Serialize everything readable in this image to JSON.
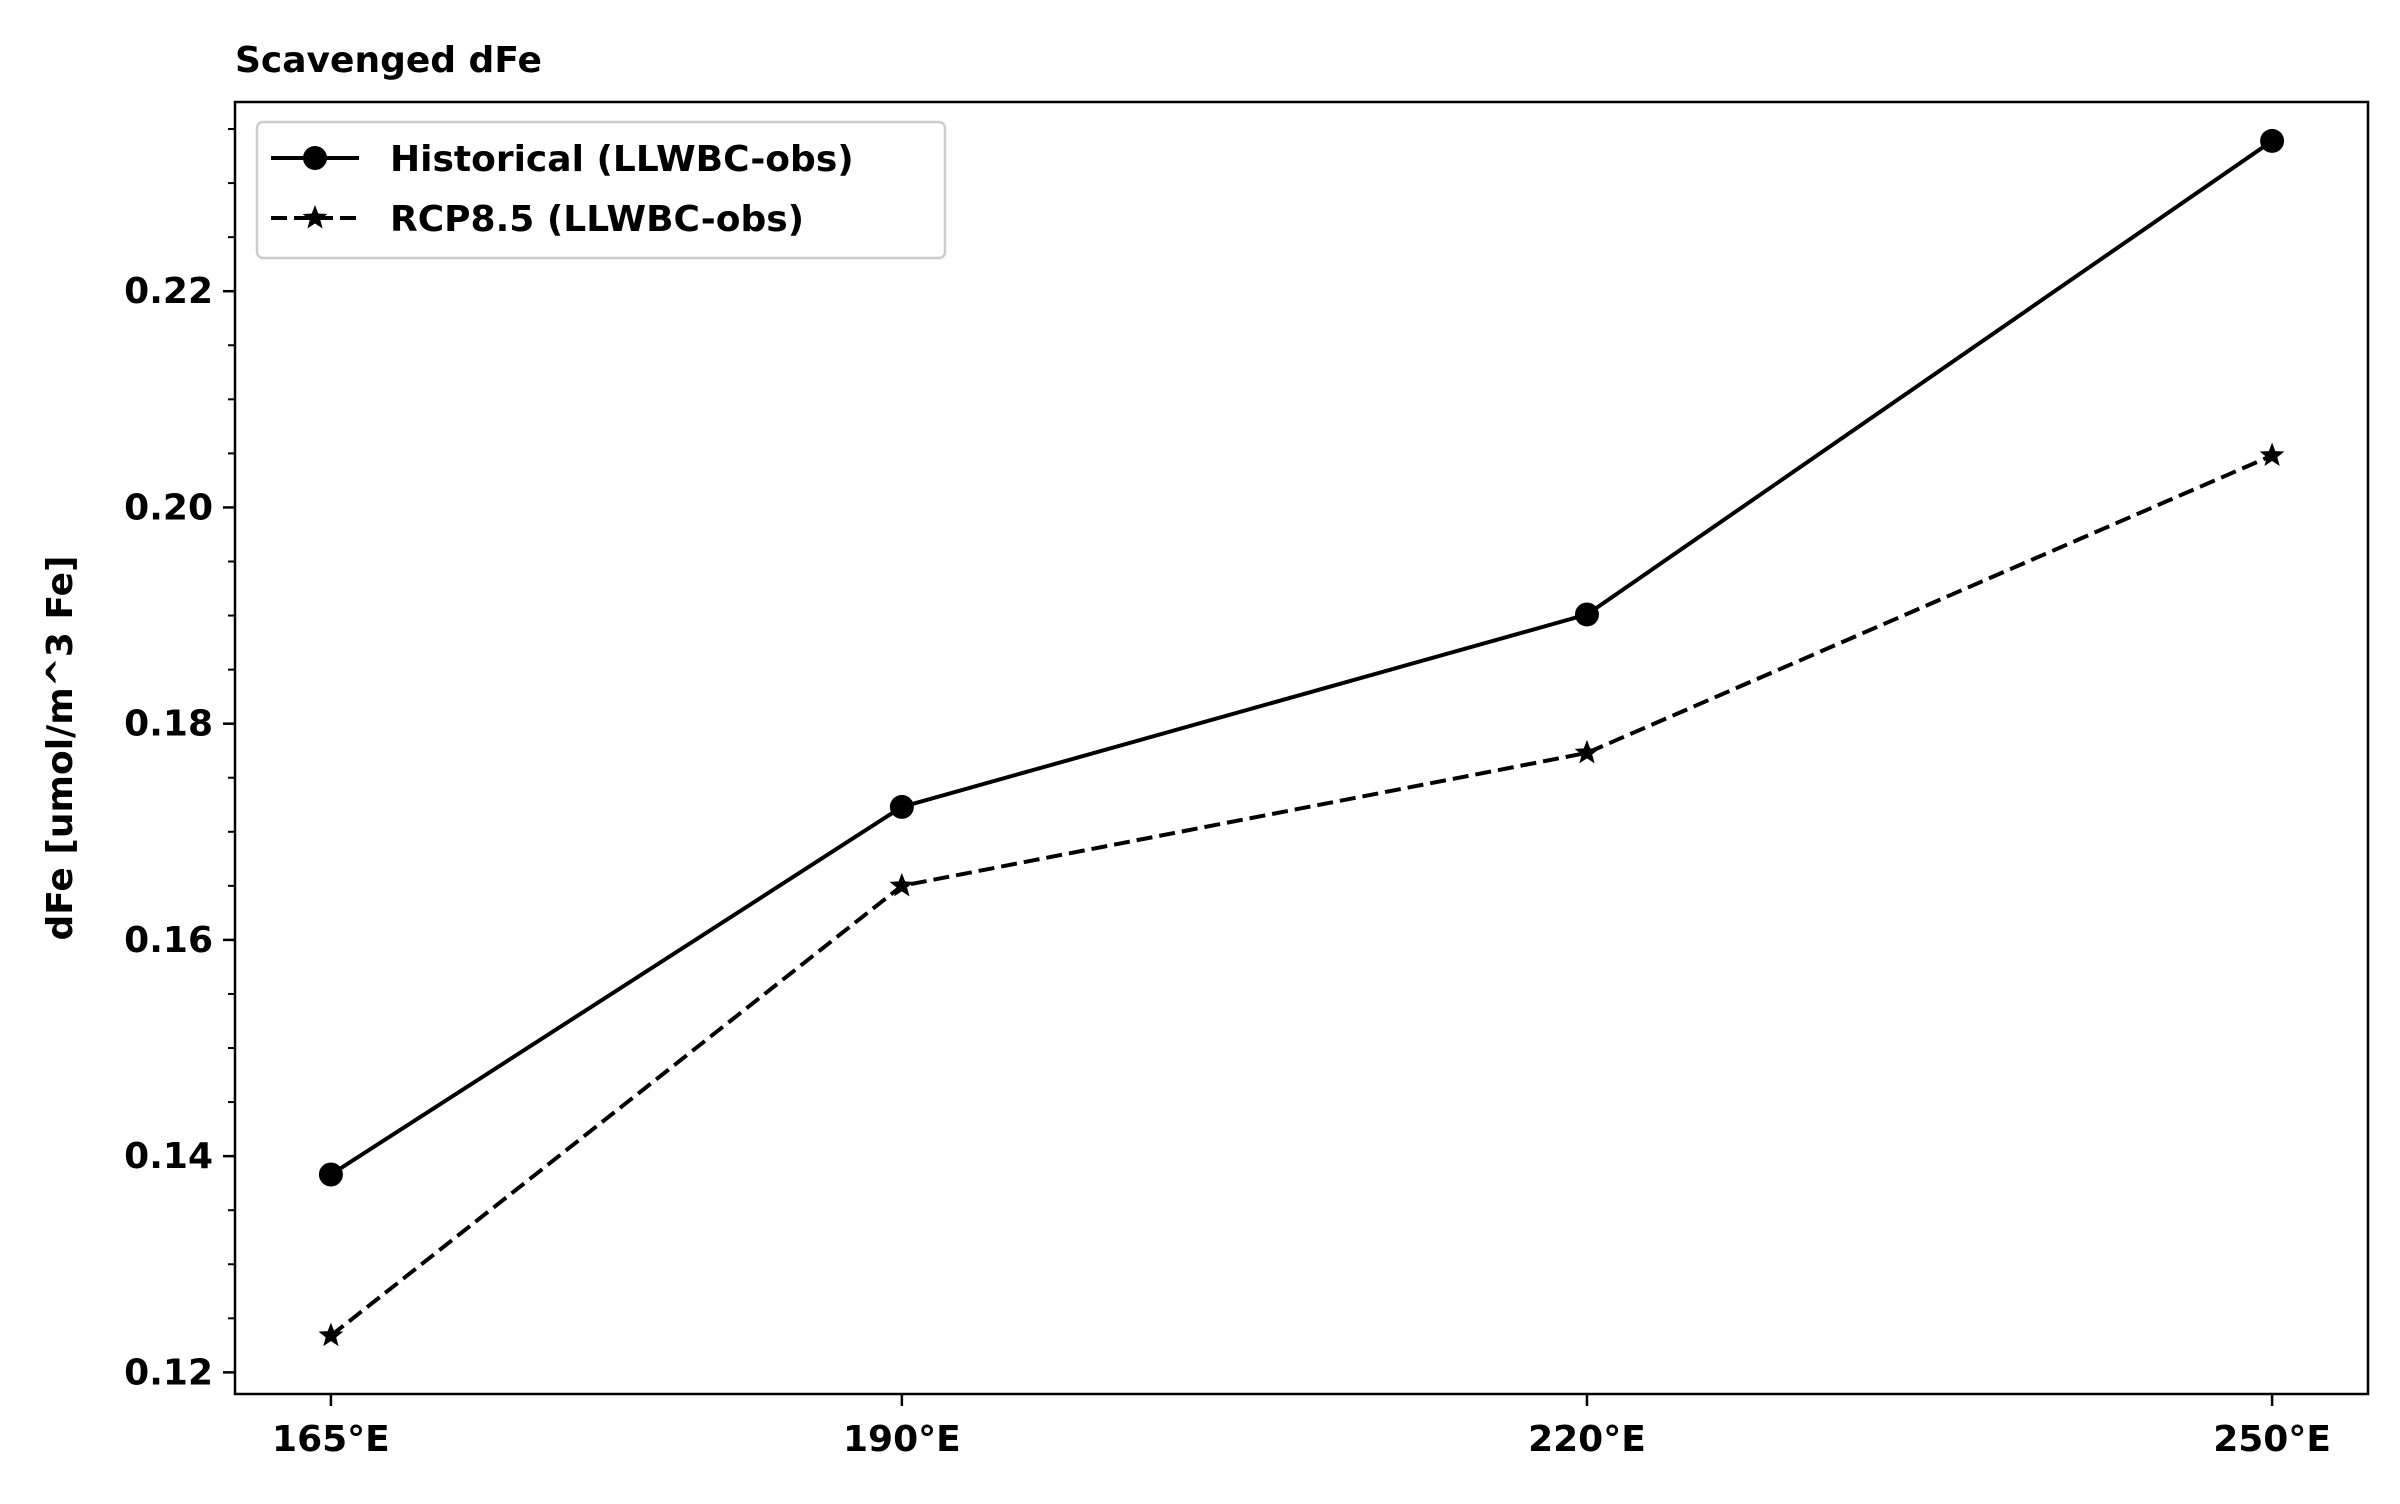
{
  "chart_data": {
    "type": "line",
    "title": "Scavenged dFe",
    "xlabel": "",
    "ylabel": "dFe [umol/m^3 Fe]",
    "categories": [
      "165°E",
      "190°E",
      "220°E",
      "250°E"
    ],
    "x": [
      165,
      190,
      220,
      250
    ],
    "y_ticks": [
      0.12,
      0.14,
      0.16,
      0.18,
      0.2,
      0.22
    ],
    "y_tick_labels": [
      "0.12",
      "0.14",
      "0.16",
      "0.18",
      "0.20",
      "0.22"
    ],
    "ylim": [
      0.118,
      0.2375
    ],
    "xlim": [
      160.8,
      254.2
    ],
    "grid": false,
    "legend_position": "top-left",
    "series": [
      {
        "name": "Historical (LLWBC-obs)",
        "values": [
          0.1383,
          0.1723,
          0.1901,
          0.2339
        ],
        "line_style": "solid",
        "marker": "circle",
        "color": "#000000"
      },
      {
        "name": "RCP8.5 (LLWBC-obs)",
        "values": [
          0.1234,
          0.165,
          0.1773,
          0.2048
        ],
        "line_style": "dashed",
        "marker": "star",
        "color": "#000000"
      }
    ]
  }
}
